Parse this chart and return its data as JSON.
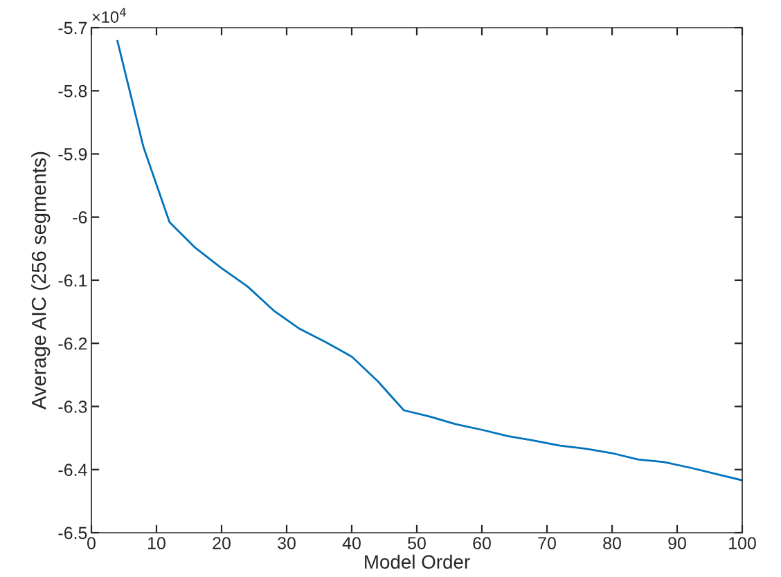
{
  "chart_data": {
    "type": "line",
    "xlabel": "Model Order",
    "ylabel": "Average AIC (256 segments)",
    "annotations": [
      "×10$^{4}$"
    ],
    "x": [
      4,
      8,
      12,
      16,
      20,
      24,
      28,
      32,
      36,
      40,
      44,
      48,
      52,
      56,
      60,
      64,
      68,
      72,
      76,
      80,
      84,
      88,
      92,
      96,
      100
    ],
    "series": [
      {
        "color": "#0072bd",
        "values": [
          -5.721,
          -5.889,
          -6.008,
          -6.049,
          -6.081,
          -6.11,
          -6.148,
          -6.177,
          -6.198,
          -6.221,
          -6.26,
          -6.306,
          -6.316,
          -6.328,
          -6.337,
          -6.347,
          -6.354,
          -6.362,
          -6.367,
          -6.374,
          -6.384,
          -6.388,
          -6.397,
          -6.407,
          -6.417
        ]
      }
    ],
    "xlim": [
      0,
      100
    ],
    "xticks": [
      0,
      10,
      20,
      30,
      40,
      50,
      60,
      70,
      80,
      90,
      100
    ],
    "ylim": [
      -6.5,
      -5.7
    ],
    "yticks": [
      -6.5,
      -6.4,
      -6.3,
      -6.2,
      -6.1,
      -6,
      -5.9,
      -5.8,
      -5.7
    ],
    "grid": false,
    "legend": false,
    "marker": "none",
    "line_style": "solid"
  }
}
